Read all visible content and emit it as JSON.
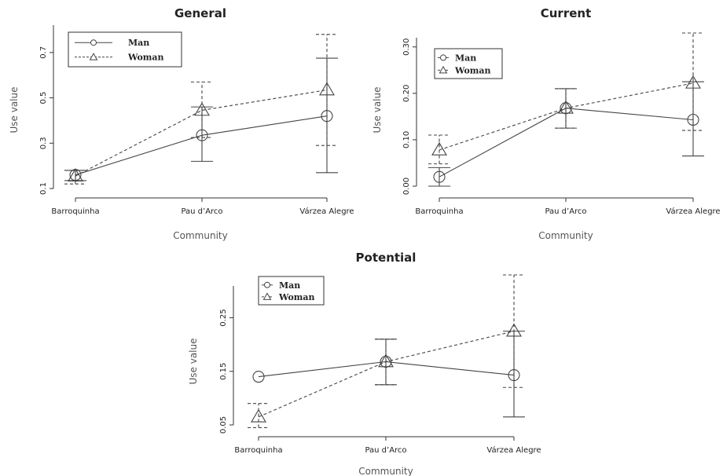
{
  "chart_data": [
    {
      "type": "line",
      "title": "General",
      "xlabel": "Community",
      "ylabel": "Use value",
      "categories": [
        "Barroquinha",
        "Pau d’Arco",
        "Várzea Alegre"
      ],
      "yticks": [
        "0.1",
        "0.3",
        "0.5",
        "0.7"
      ],
      "ylim": [
        0.1,
        0.8
      ],
      "legend_position": "top-left",
      "series": [
        {
          "name": "Man",
          "marker": "circle",
          "dash": "solid",
          "values": [
            0.16,
            0.335,
            0.42
          ],
          "err_low": [
            0.135,
            0.22,
            0.17
          ],
          "err_high": [
            0.18,
            0.46,
            0.675
          ]
        },
        {
          "name": "Woman",
          "marker": "triangle",
          "dash": "dashed",
          "values": [
            0.155,
            0.445,
            0.535
          ],
          "err_low": [
            0.12,
            0.325,
            0.29
          ],
          "err_high": [
            0.18,
            0.57,
            0.78
          ]
        }
      ]
    },
    {
      "type": "line",
      "title": "Current",
      "xlabel": "Community",
      "ylabel": "Use value",
      "categories": [
        "Barroquinha",
        "Pau d’Arco",
        "Várzea Alegre"
      ],
      "yticks": [
        "0.00",
        "0.10",
        "0.20",
        "0.30"
      ],
      "ylim": [
        0,
        0.33
      ],
      "legend_position": "top-left",
      "series": [
        {
          "name": "Man",
          "marker": "circle",
          "dash": "solid",
          "values": [
            0.02,
            0.168,
            0.143
          ],
          "err_low": [
            0.0,
            0.125,
            0.065
          ],
          "err_high": [
            0.04,
            0.21,
            0.225
          ]
        },
        {
          "name": "Woman",
          "marker": "triangle",
          "dash": "dashed",
          "values": [
            0.078,
            0.168,
            0.222
          ],
          "err_low": [
            0.048,
            0.125,
            0.12
          ],
          "err_high": [
            0.11,
            0.21,
            0.33
          ]
        }
      ]
    },
    {
      "type": "line",
      "title": "Potential",
      "xlabel": "Community",
      "ylabel": "Use value",
      "categories": [
        "Barroquinha",
        "Pau d’Arco",
        "Várzea Alegre"
      ],
      "yticks": [
        "0.05",
        "0.15",
        "0.25"
      ],
      "ylim": [
        0.05,
        0.33
      ],
      "legend_position": "top-left",
      "series": [
        {
          "name": "Man",
          "marker": "circle",
          "dash": "solid",
          "values": [
            0.14,
            0.168,
            0.143
          ],
          "err_low": [
            null,
            0.125,
            0.065
          ],
          "err_high": [
            null,
            0.21,
            0.225
          ]
        },
        {
          "name": "Woman",
          "marker": "triangle",
          "dash": "dashed",
          "values": [
            0.065,
            0.168,
            0.225
          ],
          "err_low": [
            0.045,
            0.125,
            0.12
          ],
          "err_high": [
            0.09,
            0.21,
            0.33
          ]
        }
      ]
    }
  ]
}
